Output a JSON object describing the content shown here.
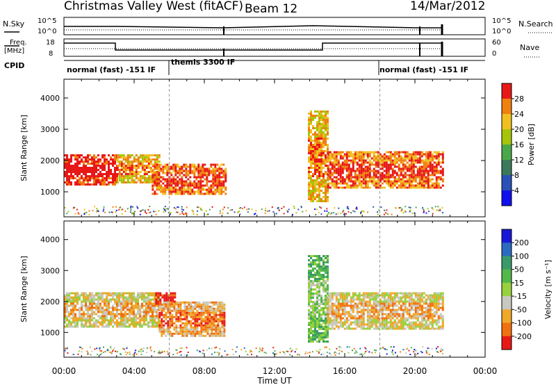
{
  "header": {
    "title": "Christmas Valley West (fitACF)",
    "beam": "Beam 12",
    "date": "14/Mar/2012"
  },
  "strip_noise": {
    "left_label": "N.Sky",
    "left_ticks": [
      "10^5",
      "10^0"
    ],
    "right_label": "N.Search",
    "right_ticks": [
      "10^5",
      "10^0"
    ]
  },
  "strip_freq": {
    "left_label_1": "Freq.",
    "left_label_2": "[MHz]",
    "left_ticks": [
      "18",
      "8"
    ],
    "right_label": "Nave",
    "right_ticks": [
      "60",
      "0"
    ]
  },
  "cpid": {
    "label": "CPID",
    "segments": [
      {
        "text": "normal (fast) -151 IF",
        "start_h": 0,
        "end_h": 6
      },
      {
        "text": "themis 3300 IF",
        "start_h": 6,
        "end_h": 18
      },
      {
        "text": "normal (fast) -151 IF",
        "start_h": 18,
        "end_h": 24
      }
    ]
  },
  "time_axis": {
    "label": "Time UT",
    "ticks": [
      "00:00",
      "04:00",
      "08:00",
      "12:00",
      "16:00",
      "20:00",
      "00:00"
    ]
  },
  "chart_data": [
    {
      "type": "heatmap",
      "name": "power",
      "ylabel": "Slant Range [km]",
      "yticks": [
        1000,
        2000,
        3000,
        4000
      ],
      "ylim": [
        200,
        4600
      ],
      "xlim_hours": [
        0,
        24
      ],
      "colorbar_label": "Power [dB]",
      "colorbar_ticks": [
        "4",
        "8",
        "12",
        "16",
        "20",
        "24",
        "28"
      ],
      "colorbar_colors": [
        "#1010ee",
        "#2a52b6",
        "#3a7a5a",
        "#4aa84a",
        "#a6c40a",
        "#f0c020",
        "#f08010",
        "#e81818"
      ],
      "echo_regions": [
        {
          "t0": 0.0,
          "t1": 3.0,
          "r0": 1200,
          "r1": 2200,
          "level": 7
        },
        {
          "t0": 3.0,
          "t1": 5.4,
          "r0": 1300,
          "r1": 2200,
          "level": 5
        },
        {
          "t0": 5.0,
          "t1": 9.2,
          "r0": 900,
          "r1": 1900,
          "level": 6
        },
        {
          "t0": 13.9,
          "t1": 15.0,
          "r0": 700,
          "r1": 3600,
          "level": 5
        },
        {
          "t0": 15.0,
          "t1": 21.6,
          "r0": 1100,
          "r1": 2300,
          "level": 6
        }
      ]
    },
    {
      "type": "heatmap",
      "name": "velocity",
      "ylabel": "Slant Range [km]",
      "yticks": [
        1000,
        2000,
        3000,
        4000
      ],
      "ylim": [
        200,
        4600
      ],
      "xlim_hours": [
        0,
        24
      ],
      "colorbar_label": "Velocity [m s⁻¹]",
      "colorbar_ticks": [
        "200",
        "100",
        "50",
        "15",
        "-15",
        "-50",
        "-100",
        "-200"
      ],
      "colorbar_colors": [
        "#1818d8",
        "#2a6ac0",
        "#3a9a6a",
        "#52b84a",
        "#98d040",
        "#c8c8c0",
        "#f0a828",
        "#f07010",
        "#e81818"
      ],
      "echo_regions": [
        {
          "t0": 0.0,
          "t1": 5.4,
          "r0": 1200,
          "r1": 2300,
          "level": 5
        },
        {
          "t0": 5.2,
          "t1": 6.3,
          "r0": 1900,
          "r1": 2300,
          "level": 8
        },
        {
          "t0": 5.4,
          "t1": 9.2,
          "r0": 900,
          "r1": 2000,
          "level": 6
        },
        {
          "t0": 13.9,
          "t1": 15.0,
          "r0": 700,
          "r1": 3500,
          "level": 3
        },
        {
          "t0": 15.0,
          "t1": 21.6,
          "r0": 1100,
          "r1": 2300,
          "level": 5
        }
      ]
    }
  ]
}
